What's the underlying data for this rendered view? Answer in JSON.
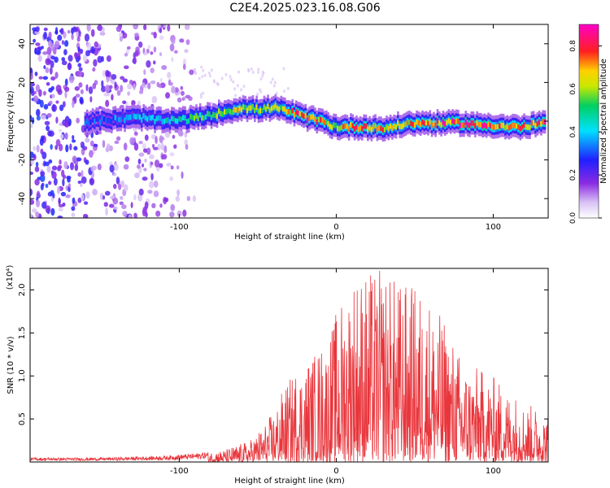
{
  "page_title": "C2E4.2025.023.16.08.G06",
  "chart_data": [
    {
      "type": "heatmap",
      "title": "",
      "xlabel": "Height of straight line (km)",
      "ylabel": "Frequency (Hz)",
      "xlim": [
        -195,
        135
      ],
      "ylim": [
        -50,
        50
      ],
      "x_ticks": [
        -100,
        0,
        100
      ],
      "y_ticks": [
        -40,
        -20,
        0,
        20,
        40
      ],
      "colorbar": {
        "label": "Normalized spectral amplitude",
        "range": [
          0.0,
          0.9
        ],
        "ticks": [
          0.0,
          0.2,
          0.4,
          0.6,
          0.8
        ],
        "colormap": "rainbow (white-violet-blue-cyan-green-yellow-red-magenta)"
      },
      "dominant_frequency_trace": {
        "x": [
          -155,
          -140,
          -125,
          -110,
          -95,
          -80,
          -70,
          -60,
          -50,
          -40,
          -30,
          -20,
          -10,
          0,
          10,
          20,
          30,
          40,
          50,
          60,
          70,
          80,
          90,
          100,
          110,
          120,
          130
        ],
        "y": [
          0,
          1,
          2,
          0,
          1,
          3,
          5,
          7,
          6,
          7,
          5,
          2,
          0,
          -3,
          -3,
          -3,
          -4,
          -2,
          -1,
          -1,
          -1,
          -1,
          -2,
          -2,
          -3,
          -3,
          -1
        ],
        "peak_amplitude": [
          0.3,
          0.35,
          0.4,
          0.45,
          0.5,
          0.55,
          0.6,
          0.65,
          0.6,
          0.6,
          0.65,
          0.85,
          0.7,
          0.6,
          0.75,
          0.75,
          0.7,
          0.65,
          0.7,
          0.75,
          0.8,
          0.85,
          0.8,
          0.75,
          0.7,
          0.75,
          0.8
        ]
      },
      "noise_region": {
        "x_range": [
          -195,
          -95
        ],
        "description": "scattered low-amplitude noise across all frequencies"
      }
    },
    {
      "type": "line",
      "title": "",
      "xlabel": "Height of straight line (km)",
      "ylabel": "SNR (10 * v/v)",
      "y_multiplier_label": "(x10⁴)",
      "xlim": [
        -195,
        135
      ],
      "ylim": [
        0,
        2.25
      ],
      "x_ticks": [
        -100,
        0,
        100
      ],
      "y_ticks": [
        0.5,
        1.0,
        1.5,
        2.0
      ],
      "color": "#e8363c",
      "envelope": {
        "x": [
          -195,
          -150,
          -110,
          -90,
          -70,
          -55,
          -45,
          -40,
          -35,
          -25,
          -15,
          -5,
          0,
          10,
          20,
          30,
          40,
          50,
          60,
          70,
          80,
          90,
          100,
          110,
          120,
          130,
          135
        ],
        "max_y": [
          0.05,
          0.05,
          0.07,
          0.1,
          0.15,
          0.25,
          0.45,
          0.6,
          0.8,
          1.1,
          1.25,
          1.45,
          1.75,
          2.2,
          2.2,
          2.25,
          2.1,
          2.05,
          1.9,
          1.6,
          1.2,
          1.1,
          1.0,
          0.85,
          0.7,
          0.6,
          0.55
        ]
      }
    }
  ]
}
